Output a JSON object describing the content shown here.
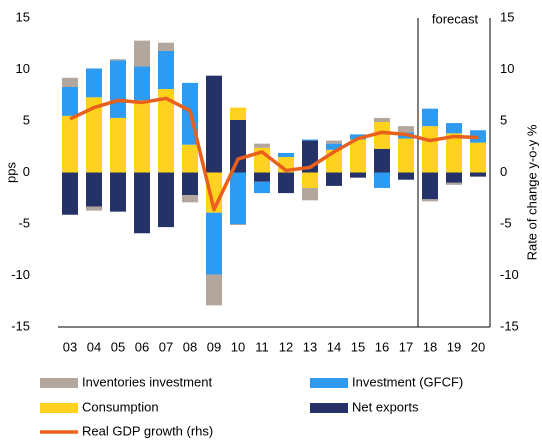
{
  "chart_data": {
    "type": "bar",
    "stacked": true,
    "y_label": "pps",
    "y2_label": "Rate of change y-o-y %",
    "annotation": "forecast",
    "categories": [
      "03",
      "04",
      "05",
      "06",
      "07",
      "08",
      "09",
      "10",
      "11",
      "12",
      "13",
      "14",
      "15",
      "16",
      "17",
      "18",
      "19",
      "20"
    ],
    "series": [
      {
        "name": "Inventories investment",
        "color": "#b3a69c",
        "values": [
          0.9,
          -0.4,
          0.1,
          2.5,
          0.8,
          -0.7,
          -3.0,
          -0.1,
          0.4,
          0,
          -1.2,
          0.3,
          0,
          0.4,
          0.6,
          -0.2,
          -0.2,
          0
        ]
      },
      {
        "name": "Investment (GFCF)",
        "color": "#2e9bf0",
        "values": [
          2.8,
          2.8,
          5.6,
          3.3,
          3.7,
          6.0,
          -6.0,
          -5.0,
          -1.1,
          0.4,
          0.1,
          0.6,
          0.5,
          -1.5,
          0.6,
          1.7,
          1.0,
          1.2
        ]
      },
      {
        "name": "Consumption",
        "color": "#ffd21f",
        "values": [
          5.5,
          7.3,
          5.3,
          7.0,
          8.1,
          2.7,
          -3.9,
          1.2,
          2.4,
          1.5,
          -1.5,
          2.2,
          3.2,
          2.6,
          3.3,
          4.5,
          3.8,
          2.9
        ]
      },
      {
        "name": "Net exports",
        "color": "#253268",
        "values": [
          -4.1,
          -3.3,
          -3.8,
          -5.9,
          -5.3,
          -2.2,
          9.4,
          5.1,
          -0.9,
          -2.0,
          3.1,
          -1.3,
          -0.5,
          2.3,
          -0.7,
          -2.6,
          -1.0,
          -0.4
        ]
      },
      {
        "name": "Real GDP growth (rhs)",
        "color": "#e8601c",
        "type": "line",
        "axis": "y2",
        "values": [
          5.2,
          6.3,
          7.0,
          6.8,
          7.2,
          6.0,
          -3.6,
          1.3,
          2.0,
          0.2,
          0.5,
          2.0,
          3.3,
          3.9,
          3.7,
          3.1,
          3.5,
          3.4
        ]
      }
    ],
    "ylim": [
      -15,
      15
    ],
    "yticks": [
      -15,
      -10,
      -5,
      0,
      5,
      10,
      15
    ],
    "y2lim": [
      -15,
      15
    ],
    "y2ticks": [
      -15,
      -10,
      -5,
      0,
      5,
      10,
      15
    ]
  }
}
